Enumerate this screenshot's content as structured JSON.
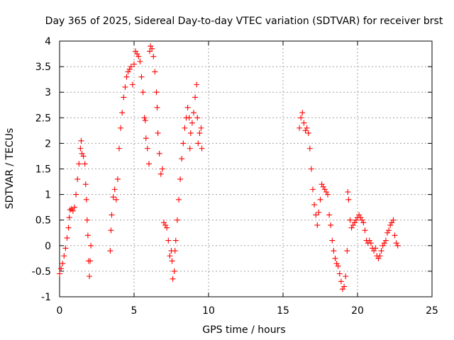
{
  "chart_data": {
    "type": "scatter",
    "title": "Day 365 of 2025, Sidereal Day-to-day VTEC variation (SDTVAR) for receiver brst",
    "xlabel": "GPS time / hours",
    "ylabel": "SDTVAR / TECUs",
    "xlim": [
      0,
      25
    ],
    "ylim": [
      -1,
      4
    ],
    "xticks": [
      "0",
      "5",
      "10",
      "15",
      "20",
      "25"
    ],
    "yticks": [
      "-1",
      "-0.5",
      "0",
      "0.5",
      "1",
      "1.5",
      "2",
      "2.5",
      "3",
      "3.5",
      "4"
    ],
    "xtick_values": [
      0,
      5,
      10,
      15,
      20,
      25
    ],
    "ytick_values": [
      -1,
      -0.5,
      0,
      0.5,
      1,
      1.5,
      2,
      2.5,
      3,
      3.5,
      4
    ],
    "grid": true,
    "marker": "plus",
    "series": [
      {
        "name": "SDTVAR",
        "color": "#ff0000",
        "points": [
          [
            0.0,
            -0.55
          ],
          [
            0.1,
            -0.45
          ],
          [
            0.2,
            -0.35
          ],
          [
            0.3,
            -0.2
          ],
          [
            0.4,
            -0.05
          ],
          [
            0.5,
            0.15
          ],
          [
            0.6,
            0.35
          ],
          [
            0.65,
            0.55
          ],
          [
            0.7,
            0.7
          ],
          [
            0.8,
            0.72
          ],
          [
            0.9,
            0.68
          ],
          [
            1.0,
            0.75
          ],
          [
            1.1,
            1.0
          ],
          [
            1.2,
            1.3
          ],
          [
            1.3,
            1.6
          ],
          [
            1.4,
            1.9
          ],
          [
            1.45,
            2.05
          ],
          [
            1.5,
            1.8
          ],
          [
            1.6,
            1.75
          ],
          [
            1.7,
            1.6
          ],
          [
            1.75,
            1.2
          ],
          [
            1.8,
            0.9
          ],
          [
            1.85,
            0.5
          ],
          [
            1.9,
            0.2
          ],
          [
            1.95,
            -0.3
          ],
          [
            2.0,
            -0.6
          ],
          [
            2.05,
            -0.3
          ],
          [
            2.1,
            0.0
          ],
          [
            3.4,
            -0.1
          ],
          [
            3.45,
            0.3
          ],
          [
            3.5,
            0.6
          ],
          [
            3.6,
            0.95
          ],
          [
            3.7,
            1.1
          ],
          [
            3.8,
            0.9
          ],
          [
            3.9,
            1.3
          ],
          [
            4.0,
            1.9
          ],
          [
            4.1,
            2.3
          ],
          [
            4.2,
            2.6
          ],
          [
            4.3,
            2.9
          ],
          [
            4.4,
            3.1
          ],
          [
            4.5,
            3.3
          ],
          [
            4.6,
            3.4
          ],
          [
            4.7,
            3.45
          ],
          [
            4.8,
            3.5
          ],
          [
            4.9,
            3.15
          ],
          [
            5.0,
            3.55
          ],
          [
            5.1,
            3.8
          ],
          [
            5.2,
            3.75
          ],
          [
            5.3,
            3.7
          ],
          [
            5.4,
            3.6
          ],
          [
            5.5,
            3.3
          ],
          [
            5.6,
            3.0
          ],
          [
            5.7,
            2.5
          ],
          [
            5.75,
            2.45
          ],
          [
            5.8,
            2.1
          ],
          [
            5.9,
            1.9
          ],
          [
            6.0,
            1.6
          ],
          [
            6.05,
            3.8
          ],
          [
            6.1,
            3.9
          ],
          [
            6.2,
            3.85
          ],
          [
            6.3,
            3.7
          ],
          [
            6.4,
            3.4
          ],
          [
            6.5,
            3.0
          ],
          [
            6.55,
            2.7
          ],
          [
            6.6,
            2.2
          ],
          [
            6.7,
            1.8
          ],
          [
            6.8,
            1.4
          ],
          [
            6.9,
            1.5
          ],
          [
            7.0,
            0.45
          ],
          [
            7.1,
            0.4
          ],
          [
            7.2,
            0.35
          ],
          [
            7.3,
            0.1
          ],
          [
            7.4,
            -0.2
          ],
          [
            7.5,
            -0.1
          ],
          [
            7.55,
            -0.3
          ],
          [
            7.6,
            -0.65
          ],
          [
            7.7,
            -0.5
          ],
          [
            7.75,
            -0.1
          ],
          [
            7.8,
            0.1
          ],
          [
            7.9,
            0.5
          ],
          [
            8.0,
            0.9
          ],
          [
            8.1,
            1.3
          ],
          [
            8.2,
            1.7
          ],
          [
            8.3,
            2.0
          ],
          [
            8.4,
            2.3
          ],
          [
            8.5,
            2.5
          ],
          [
            8.6,
            2.7
          ],
          [
            8.7,
            2.5
          ],
          [
            8.75,
            1.9
          ],
          [
            8.8,
            2.2
          ],
          [
            8.9,
            2.4
          ],
          [
            9.0,
            2.6
          ],
          [
            9.1,
            2.9
          ],
          [
            9.2,
            3.15
          ],
          [
            9.25,
            2.5
          ],
          [
            9.3,
            2.0
          ],
          [
            9.4,
            2.2
          ],
          [
            9.5,
            2.3
          ],
          [
            9.55,
            1.9
          ],
          [
            16.1,
            2.3
          ],
          [
            16.2,
            2.5
          ],
          [
            16.3,
            2.6
          ],
          [
            16.4,
            2.4
          ],
          [
            16.5,
            2.25
          ],
          [
            16.6,
            2.3
          ],
          [
            16.7,
            2.2
          ],
          [
            16.8,
            1.9
          ],
          [
            16.9,
            1.5
          ],
          [
            17.0,
            1.1
          ],
          [
            17.1,
            0.8
          ],
          [
            17.2,
            0.6
          ],
          [
            17.3,
            0.4
          ],
          [
            17.4,
            0.65
          ],
          [
            17.5,
            0.9
          ],
          [
            17.6,
            1.2
          ],
          [
            17.7,
            1.15
          ],
          [
            17.8,
            1.1
          ],
          [
            17.9,
            1.05
          ],
          [
            18.0,
            1.0
          ],
          [
            18.1,
            0.6
          ],
          [
            18.2,
            0.4
          ],
          [
            18.3,
            0.1
          ],
          [
            18.4,
            -0.1
          ],
          [
            18.5,
            -0.25
          ],
          [
            18.6,
            -0.35
          ],
          [
            18.7,
            -0.4
          ],
          [
            18.8,
            -0.55
          ],
          [
            18.9,
            -0.7
          ],
          [
            19.0,
            -0.85
          ],
          [
            19.1,
            -0.8
          ],
          [
            19.2,
            -0.6
          ],
          [
            19.3,
            -0.1
          ],
          [
            19.35,
            1.05
          ],
          [
            19.4,
            0.9
          ],
          [
            19.5,
            0.5
          ],
          [
            19.6,
            0.35
          ],
          [
            19.7,
            0.4
          ],
          [
            19.8,
            0.45
          ],
          [
            19.9,
            0.5
          ],
          [
            20.0,
            0.55
          ],
          [
            20.1,
            0.6
          ],
          [
            20.2,
            0.55
          ],
          [
            20.3,
            0.5
          ],
          [
            20.4,
            0.45
          ],
          [
            20.5,
            0.3
          ],
          [
            20.6,
            0.1
          ],
          [
            20.7,
            0.05
          ],
          [
            20.8,
            0.1
          ],
          [
            20.9,
            0.05
          ],
          [
            21.0,
            -0.05
          ],
          [
            21.1,
            -0.1
          ],
          [
            21.2,
            -0.05
          ],
          [
            21.3,
            -0.2
          ],
          [
            21.4,
            -0.25
          ],
          [
            21.5,
            -0.2
          ],
          [
            21.6,
            -0.1
          ],
          [
            21.7,
            0.0
          ],
          [
            21.8,
            0.05
          ],
          [
            21.9,
            0.1
          ],
          [
            22.0,
            0.25
          ],
          [
            22.1,
            0.3
          ],
          [
            22.2,
            0.4
          ],
          [
            22.3,
            0.45
          ],
          [
            22.4,
            0.5
          ],
          [
            22.5,
            0.2
          ],
          [
            22.6,
            0.05
          ],
          [
            22.7,
            0.0
          ]
        ]
      }
    ]
  }
}
